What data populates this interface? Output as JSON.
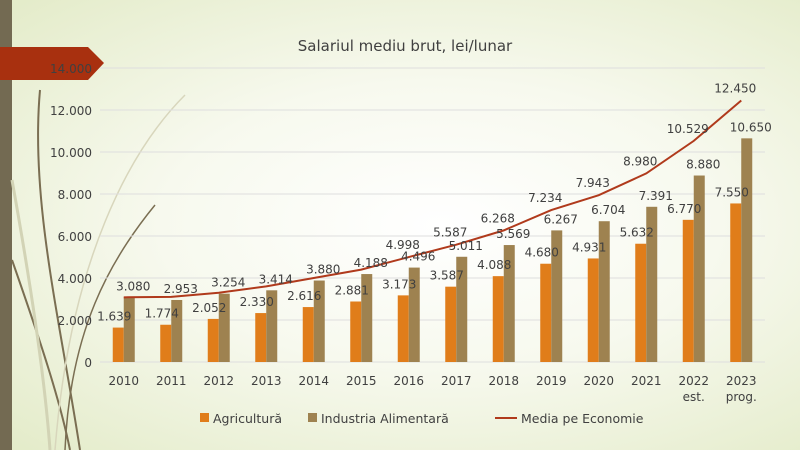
{
  "colors": {
    "agri": "#e07d1a",
    "industry": "#9e8250",
    "line": "#b03a1c",
    "banner": "#a8300f",
    "stripe": "#736a52"
  },
  "chart_data": {
    "type": "bar",
    "title": "Salariul mediu brut, lei/lunar",
    "categories": [
      [
        "2010"
      ],
      [
        "2011"
      ],
      [
        "2012"
      ],
      [
        "2013"
      ],
      [
        "2014"
      ],
      [
        "2015"
      ],
      [
        "2016"
      ],
      [
        "2017"
      ],
      [
        "2018"
      ],
      [
        "2019"
      ],
      [
        "2020"
      ],
      [
        "2021"
      ],
      [
        "2022",
        "est."
      ],
      [
        "2023",
        "prog."
      ]
    ],
    "ylim": [
      0,
      14000
    ],
    "yticks": [
      0,
      2000,
      4000,
      6000,
      8000,
      10000,
      12000,
      14000
    ],
    "ytick_labels": [
      "0",
      "2.000",
      "4.000",
      "6.000",
      "8.000",
      "10.000",
      "12.000",
      "14.000"
    ],
    "grid": true,
    "legend_position": "bottom",
    "series": [
      {
        "name": "Agricultură",
        "type": "bar",
        "values": [
          1639,
          1774,
          2052,
          2330,
          2616,
          2881,
          3173,
          3587,
          4088,
          4680,
          4931,
          5632,
          6770,
          7550
        ],
        "labels": [
          "1.639",
          "1.774",
          "2.052",
          "2.330",
          "2.616",
          "2.881",
          "3.173",
          "3.587",
          "4.088",
          "4.680",
          "4.931",
          "5.632",
          "6.770",
          "7.550"
        ]
      },
      {
        "name": "Industria Alimentară",
        "type": "bar",
        "values": [
          3080,
          2953,
          3254,
          3414,
          3880,
          4188,
          4496,
          5011,
          5569,
          6267,
          6704,
          7391,
          8880,
          10650
        ],
        "labels": [
          "3.080",
          "2.953",
          "3.254",
          "3.414",
          "3.880",
          "4.188",
          "4.496",
          "5.011",
          "5.569",
          "6.267",
          "6.704",
          "7.391",
          "8.880",
          "10.650"
        ]
      },
      {
        "name": "Media pe Economie",
        "type": "line",
        "values": [
          3080,
          3100,
          3300,
          3600,
          4000,
          4400,
          4998,
          5587,
          6268,
          7234,
          7943,
          8980,
          10529,
          12450
        ],
        "labels": [
          "",
          "",
          "",
          "",
          "",
          "",
          "4.998",
          "5.587",
          "6.268",
          "7.234",
          "7.943",
          "8.980",
          "10.529",
          "12.450"
        ]
      }
    ]
  }
}
